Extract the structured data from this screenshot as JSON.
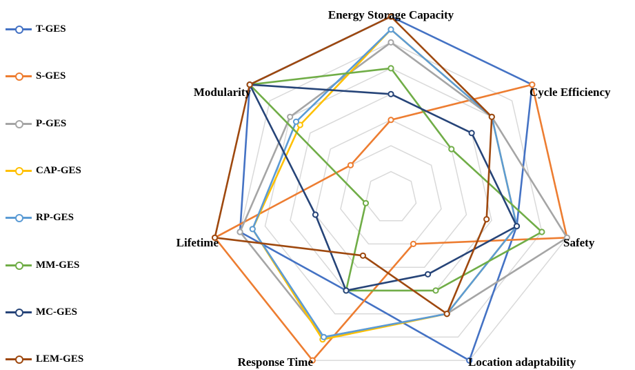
{
  "chart_data": {
    "type": "radar",
    "axes": [
      "Energy Storage Capacity",
      "Cycle Efficiency",
      "Safety",
      "Location adaptability",
      "Response Time",
      "Lifetime",
      "Modularity"
    ],
    "scale": {
      "min": 0,
      "max": 7,
      "rings": 7
    },
    "grid": true,
    "legend_position": "left",
    "series": [
      {
        "name": "T-GES",
        "color": "#4472C4",
        "values": [
          7,
          7,
          5,
          7,
          4,
          6,
          7
        ]
      },
      {
        "name": "S-GES",
        "color": "#ED7D31",
        "values": [
          3,
          7,
          7,
          2,
          7,
          7,
          2
        ]
      },
      {
        "name": "P-GES",
        "color": "#A5A5A5",
        "values": [
          6,
          5,
          7,
          5,
          6,
          6,
          5
        ]
      },
      {
        "name": "CAP-GES",
        "color": "#FFC000",
        "values": [
          6.5,
          5,
          5,
          5,
          6.1,
          5.5,
          4.5
        ]
      },
      {
        "name": "RP-GES",
        "color": "#5B9BD5",
        "values": [
          6.5,
          5,
          5,
          5,
          6,
          5.5,
          4.7
        ]
      },
      {
        "name": "MM-GES",
        "color": "#70AD47",
        "values": [
          5,
          3,
          6,
          4,
          4,
          1,
          7
        ]
      },
      {
        "name": "MC-GES",
        "color": "#264478",
        "values": [
          4,
          4,
          5,
          3.3,
          4,
          3,
          7
        ]
      },
      {
        "name": "LEM-GES",
        "color": "#9E480E",
        "values": [
          7,
          5,
          3.8,
          5,
          2.5,
          7,
          7
        ]
      }
    ]
  }
}
